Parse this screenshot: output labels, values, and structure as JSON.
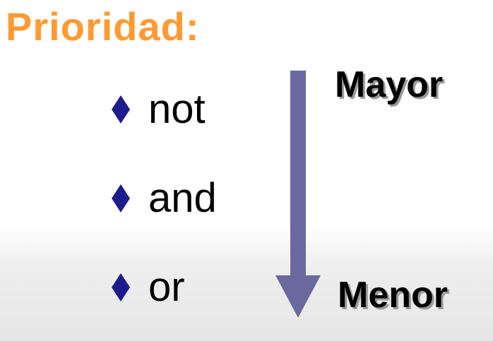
{
  "slide": {
    "title": "Prioridad:",
    "items": [
      {
        "label": "not",
        "marker_icon": "diamond-bullet-icon"
      },
      {
        "label": "and",
        "marker_icon": "diamond-bullet-icon"
      },
      {
        "label": "or",
        "marker_icon": "diamond-bullet-icon"
      }
    ],
    "scale": {
      "top_label": "Mayor",
      "bottom_label": "Menor",
      "arrow_icon": "arrow-down-icon"
    }
  },
  "colors": {
    "title": "#ff9a33",
    "bullet": "#1c1c8c",
    "arrow": "#6a6aa0",
    "text": "#000000"
  }
}
